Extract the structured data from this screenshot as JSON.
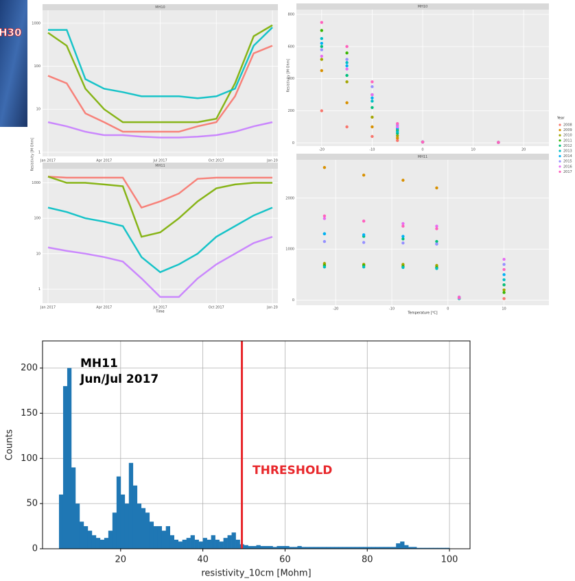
{
  "photo_label": "H30",
  "chart_data": [
    {
      "type": "line",
      "title": "MH10",
      "log_scale": true,
      "ylabel": "Resistivity [M Ohm]",
      "x": [
        "2017-01",
        "2017-02",
        "2017-03",
        "2017-04",
        "2017-05",
        "2017-06",
        "2017-07",
        "2017-08",
        "2017-09",
        "2017-10",
        "2017-11",
        "2017-12",
        "2018-01"
      ],
      "xticks": [
        {
          "value": "2017-01",
          "label": "Jan 2017"
        },
        {
          "value": "2017-04",
          "label": "Apr 2017"
        },
        {
          "value": "2017-07",
          "label": "Jul 2017"
        },
        {
          "value": "2017-10",
          "label": "Oct 2017"
        },
        {
          "value": "2018-01",
          "label": "Jan 20"
        }
      ],
      "ylim": [
        0.8,
        2000
      ],
      "yticks": [
        1,
        10,
        100,
        1000
      ],
      "series": [
        {
          "color": "#f8766d",
          "values": [
            60,
            40,
            8,
            5,
            3,
            3,
            3,
            3,
            4,
            5,
            20,
            200,
            300
          ]
        },
        {
          "color": "#7cae00",
          "values": [
            600,
            300,
            30,
            10,
            5,
            5,
            5,
            5,
            5,
            6,
            40,
            500,
            900
          ]
        },
        {
          "color": "#00bfc4",
          "values": [
            700,
            700,
            50,
            30,
            25,
            20,
            20,
            20,
            18,
            20,
            30,
            300,
            800
          ]
        },
        {
          "color": "#c77cff",
          "values": [
            5,
            4,
            3,
            2.5,
            2.5,
            2.3,
            2.2,
            2.2,
            2.3,
            2.5,
            3,
            4,
            5
          ]
        }
      ]
    },
    {
      "type": "line",
      "title": "MH11",
      "log_scale": true,
      "xlabel": "Time",
      "x": [
        "2017-01",
        "2017-02",
        "2017-03",
        "2017-04",
        "2017-05",
        "2017-06",
        "2017-07",
        "2017-08",
        "2017-09",
        "2017-10",
        "2017-11",
        "2017-12",
        "2018-01"
      ],
      "xticks": [
        {
          "value": "2017-01",
          "label": "Jan 2017"
        },
        {
          "value": "2017-04",
          "label": "Apr 2017"
        },
        {
          "value": "2017-07",
          "label": "Jul 2017"
        },
        {
          "value": "2017-10",
          "label": "Oct 2017"
        },
        {
          "value": "2018-01",
          "label": "Jan 20"
        }
      ],
      "ylim": [
        0.4,
        2500
      ],
      "yticks": [
        1,
        10,
        100,
        1000
      ],
      "series": [
        {
          "color": "#f8766d",
          "values": [
            1500,
            1400,
            1400,
            1400,
            1400,
            200,
            300,
            500,
            1300,
            1400,
            1400,
            1400,
            1400
          ]
        },
        {
          "color": "#7cae00",
          "values": [
            1500,
            1000,
            1000,
            900,
            800,
            30,
            40,
            100,
            300,
            700,
            900,
            1000,
            1000
          ]
        },
        {
          "color": "#00bfc4",
          "values": [
            200,
            150,
            100,
            80,
            60,
            8,
            3,
            5,
            10,
            30,
            60,
            120,
            200
          ]
        },
        {
          "color": "#c77cff",
          "values": [
            15,
            12,
            10,
            8,
            6,
            2,
            0.6,
            0.6,
            2,
            5,
            10,
            20,
            30
          ]
        }
      ]
    },
    {
      "type": "scatter",
      "title": "MH10",
      "ylabel": "Resistivity [M Ohm]",
      "x": [
        -20,
        -15,
        -10,
        -5,
        0,
        15
      ],
      "xlim": [
        -25,
        25
      ],
      "xticks": [
        -20,
        -10,
        0,
        10,
        20
      ],
      "ylim": [
        -20,
        830
      ],
      "yticks": [
        0,
        200,
        400,
        600,
        800
      ],
      "series": [
        {
          "color": "#f8766d",
          "values": [
            200,
            100,
            40,
            15,
            5,
            3
          ]
        },
        {
          "color": "#d89000",
          "values": [
            450,
            250,
            100,
            30,
            5,
            3
          ]
        },
        {
          "color": "#a3a500",
          "values": [
            520,
            380,
            160,
            45,
            6,
            3
          ]
        },
        {
          "color": "#39b600",
          "values": [
            700,
            560,
            300,
            80,
            6,
            3
          ]
        },
        {
          "color": "#00bf7d",
          "values": [
            600,
            420,
            220,
            60,
            5,
            3
          ]
        },
        {
          "color": "#00bfc4",
          "values": [
            650,
            500,
            260,
            70,
            6,
            3
          ]
        },
        {
          "color": "#00b0f6",
          "values": [
            620,
            480,
            280,
            90,
            6,
            3
          ]
        },
        {
          "color": "#9590ff",
          "values": [
            580,
            520,
            350,
            110,
            6,
            3
          ]
        },
        {
          "color": "#e76bf3",
          "values": [
            540,
            460,
            300,
            100,
            5,
            3
          ]
        },
        {
          "color": "#ff62bc",
          "values": [
            750,
            600,
            380,
            120,
            6,
            3
          ]
        }
      ]
    },
    {
      "type": "scatter",
      "title": "MH11",
      "xlabel": "Temperature [°C]",
      "legend_title": "Year",
      "x": [
        -22,
        -15,
        -8,
        -2,
        2,
        10
      ],
      "xlim": [
        -27,
        18
      ],
      "xticks": [
        -20,
        -10,
        0,
        10
      ],
      "ylim": [
        -100,
        2750
      ],
      "yticks": [
        0,
        1000,
        2000
      ],
      "series": [
        {
          "name": "2008",
          "color": "#f8766d",
          "values": [
            700,
            700,
            690,
            650,
            50,
            30
          ]
        },
        {
          "name": "2009",
          "color": "#d89000",
          "values": [
            2600,
            2450,
            2350,
            2200,
            40,
            300
          ]
        },
        {
          "name": "2010",
          "color": "#a3a500",
          "values": [
            720,
            700,
            700,
            680,
            30,
            200
          ]
        },
        {
          "name": "2011",
          "color": "#39b600",
          "values": [
            680,
            680,
            660,
            640,
            30,
            150
          ]
        },
        {
          "name": "2012",
          "color": "#00bf7d",
          "values": [
            1300,
            1250,
            1200,
            1150,
            50,
            300
          ]
        },
        {
          "name": "2013",
          "color": "#00bfc4",
          "values": [
            650,
            650,
            640,
            620,
            30,
            400
          ]
        },
        {
          "name": "2014",
          "color": "#00b0f6",
          "values": [
            1300,
            1280,
            1250,
            1100,
            60,
            500
          ]
        },
        {
          "name": "2015",
          "color": "#9590ff",
          "values": [
            1150,
            1130,
            1120,
            1100,
            40,
            700
          ]
        },
        {
          "name": "2016",
          "color": "#e76bf3",
          "values": [
            1600,
            1550,
            1500,
            1450,
            60,
            800
          ]
        },
        {
          "name": "2017",
          "color": "#ff62bc",
          "values": [
            1650,
            1550,
            1450,
            1400,
            50,
            600
          ]
        }
      ]
    },
    {
      "type": "histogram",
      "title": "MH11",
      "subtitle": "Jun/Jul 2017",
      "annotation": "THRESHOLD",
      "threshold": 49.5,
      "threshold_color": "#e8272b",
      "color": "#1f77b4",
      "xlabel": "resistivity_10cm [Mohm]",
      "ylabel": "Counts",
      "grid": true,
      "xlim": [
        1,
        105
      ],
      "xticks": [
        20,
        40,
        60,
        80,
        100
      ],
      "ylim": [
        0,
        230
      ],
      "yticks": [
        0,
        50,
        100,
        150,
        200
      ],
      "bins": [
        5,
        6,
        7,
        8,
        9,
        10,
        11,
        12,
        13,
        14,
        15,
        16,
        17,
        18,
        19,
        20,
        21,
        22,
        23,
        24,
        25,
        26,
        27,
        28,
        29,
        30,
        31,
        32,
        33,
        34,
        35,
        36,
        37,
        38,
        39,
        40,
        41,
        42,
        43,
        44,
        45,
        46,
        47,
        48,
        49,
        50,
        51,
        52,
        53,
        54,
        55,
        56,
        57,
        58,
        59,
        60,
        61,
        62,
        63,
        64,
        65,
        66,
        67,
        68,
        69,
        70,
        71,
        72,
        73,
        74,
        75,
        76,
        77,
        78,
        79,
        80,
        81,
        82,
        83,
        84,
        85,
        86,
        87,
        88,
        89,
        90,
        91,
        92,
        93,
        94,
        95,
        96,
        97,
        98,
        99,
        100
      ],
      "counts": [
        60,
        180,
        200,
        90,
        50,
        30,
        25,
        20,
        15,
        12,
        10,
        12,
        20,
        40,
        80,
        60,
        50,
        95,
        70,
        50,
        45,
        40,
        30,
        25,
        25,
        20,
        25,
        15,
        10,
        8,
        10,
        12,
        15,
        10,
        8,
        12,
        10,
        15,
        10,
        8,
        12,
        15,
        18,
        10,
        5,
        4,
        3,
        3,
        4,
        3,
        3,
        3,
        2,
        3,
        3,
        3,
        2,
        2,
        3,
        2,
        2,
        2,
        2,
        2,
        2,
        2,
        2,
        2,
        2,
        2,
        2,
        2,
        2,
        2,
        2,
        2,
        2,
        2,
        2,
        2,
        2,
        2,
        6,
        8,
        4,
        2,
        2,
        1,
        1,
        1,
        1,
        1,
        1,
        1,
        1
      ]
    }
  ]
}
